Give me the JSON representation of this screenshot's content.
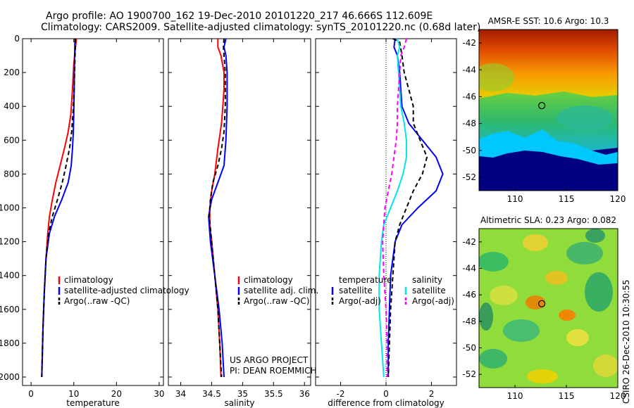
{
  "header": {
    "title_line1": "Argo profile: AO 1900700_162 19-Dec-2010 20101220_217 46.666S 112.609E",
    "title_line2": "Climatology: CARS2009. Satellite-adjusted climatology: synTS_20101220.nc (0.68d later)"
  },
  "credit": {
    "line1": "US ARGO PROJECT",
    "line2": "PI: DEAN ROEMMICH",
    "side": "CSIRO 26-Dec-2010 10:30:55"
  },
  "colors": {
    "red": "#ff0000",
    "blue": "#0000ff",
    "black": "#000000",
    "cyan": "#00e5ee",
    "magenta": "#ff00ff"
  },
  "chart_data": [
    {
      "type": "line",
      "id": "temperature",
      "xlabel": "temperature",
      "ylabel": "",
      "xlim": [
        -2,
        31
      ],
      "ylim": [
        2050,
        0
      ],
      "xticks": [
        0,
        10,
        20,
        30
      ],
      "yticks": [
        0,
        200,
        400,
        600,
        800,
        1000,
        1200,
        1400,
        1600,
        1800,
        2000
      ],
      "legend": [
        "climatology",
        "satellite-adjusted climatology",
        "Argo(..raw -QC)"
      ],
      "series": [
        {
          "name": "climatology",
          "color": "red",
          "dash": false,
          "points": [
            [
              10.6,
              0
            ],
            [
              10.4,
              50
            ],
            [
              10.0,
              150
            ],
            [
              9.7,
              300
            ],
            [
              9.3,
              450
            ],
            [
              8.7,
              550
            ],
            [
              7.8,
              650
            ],
            [
              6.8,
              750
            ],
            [
              5.8,
              850
            ],
            [
              5.0,
              950
            ],
            [
              4.3,
              1050
            ],
            [
              3.9,
              1150
            ],
            [
              3.5,
              1300
            ],
            [
              3.1,
              1500
            ],
            [
              2.8,
              1700
            ],
            [
              2.6,
              1900
            ],
            [
              2.5,
              2000
            ]
          ]
        },
        {
          "name": "satellite-adjusted climatology",
          "color": "blue",
          "dash": false,
          "points": [
            [
              10.3,
              0
            ],
            [
              10.2,
              100
            ],
            [
              10.1,
              300
            ],
            [
              10.0,
              450
            ],
            [
              9.9,
              550
            ],
            [
              9.7,
              650
            ],
            [
              9.4,
              750
            ],
            [
              8.7,
              850
            ],
            [
              7.2,
              950
            ],
            [
              5.5,
              1050
            ],
            [
              4.3,
              1150
            ],
            [
              3.5,
              1300
            ],
            [
              3.1,
              1500
            ],
            [
              2.8,
              1700
            ],
            [
              2.6,
              1900
            ],
            [
              2.5,
              2000
            ]
          ]
        },
        {
          "name": "Argo(..raw -QC)",
          "color": "black",
          "dash": true,
          "points": [
            [
              10.4,
              0
            ],
            [
              10.3,
              100
            ],
            [
              10.1,
              300
            ],
            [
              9.8,
              450
            ],
            [
              9.5,
              550
            ],
            [
              9.0,
              650
            ],
            [
              8.2,
              750
            ],
            [
              7.3,
              850
            ],
            [
              6.2,
              950
            ],
            [
              5.0,
              1050
            ],
            [
              4.1,
              1150
            ],
            [
              3.5,
              1300
            ],
            [
              3.1,
              1500
            ],
            [
              2.8,
              1700
            ],
            [
              2.6,
              1900
            ],
            [
              2.5,
              2000
            ]
          ]
        }
      ]
    },
    {
      "type": "line",
      "id": "salinity",
      "xlabel": "salinity",
      "ylabel": "",
      "xlim": [
        33.8,
        36.1
      ],
      "ylim": [
        2050,
        0
      ],
      "xticks": [
        34,
        34.5,
        35,
        35.5,
        36
      ],
      "yticks": [
        0,
        200,
        400,
        600,
        800,
        1000,
        1200,
        1400,
        1600,
        1800,
        2000
      ],
      "legend": [
        "climatology",
        "satellite adj. clim.",
        "Argo(..raw -QC)"
      ],
      "series": [
        {
          "name": "climatology",
          "color": "red",
          "dash": false,
          "points": [
            [
              34.6,
              0
            ],
            [
              34.6,
              50
            ],
            [
              34.65,
              100
            ],
            [
              34.7,
              200
            ],
            [
              34.7,
              300
            ],
            [
              34.68,
              400
            ],
            [
              34.66,
              500
            ],
            [
              34.6,
              650
            ],
            [
              34.55,
              800
            ],
            [
              34.5,
              900
            ],
            [
              34.47,
              1000
            ],
            [
              34.47,
              1100
            ],
            [
              34.5,
              1200
            ],
            [
              34.55,
              1400
            ],
            [
              34.6,
              1600
            ],
            [
              34.63,
              1800
            ],
            [
              34.65,
              2000
            ]
          ]
        },
        {
          "name": "satellite adj. clim.",
          "color": "blue",
          "dash": false,
          "points": [
            [
              34.73,
              0
            ],
            [
              34.7,
              50
            ],
            [
              34.73,
              100
            ],
            [
              34.75,
              200
            ],
            [
              34.75,
              400
            ],
            [
              34.73,
              600
            ],
            [
              34.7,
              750
            ],
            [
              34.6,
              850
            ],
            [
              34.5,
              950
            ],
            [
              34.45,
              1050
            ],
            [
              34.48,
              1200
            ],
            [
              34.55,
              1400
            ],
            [
              34.62,
              1600
            ],
            [
              34.67,
              1800
            ],
            [
              34.7,
              2000
            ]
          ]
        },
        {
          "name": "Argo(..raw -QC)",
          "color": "black",
          "dash": true,
          "points": [
            [
              34.7,
              0
            ],
            [
              34.69,
              50
            ],
            [
              34.7,
              100
            ],
            [
              34.72,
              200
            ],
            [
              34.72,
              400
            ],
            [
              34.7,
              550
            ],
            [
              34.66,
              650
            ],
            [
              34.6,
              750
            ],
            [
              34.52,
              850
            ],
            [
              34.48,
              950
            ],
            [
              34.46,
              1050
            ],
            [
              34.5,
              1200
            ],
            [
              34.55,
              1400
            ],
            [
              34.6,
              1600
            ],
            [
              34.63,
              1800
            ],
            [
              34.66,
              2000
            ]
          ]
        }
      ]
    },
    {
      "type": "line",
      "id": "difference",
      "xlabel": "difference from climatology",
      "ylabel": "",
      "xlim": [
        -3.1,
        3.1
      ],
      "ylim": [
        2050,
        0
      ],
      "xticks": [
        -2,
        0,
        2
      ],
      "yticks": [
        0,
        200,
        400,
        600,
        800,
        1000,
        1200,
        1400,
        1600,
        1800,
        2000
      ],
      "legend_groups": [
        {
          "heading": "temperature",
          "items": [
            "satellite",
            "Argo(-adj)"
          ]
        },
        {
          "heading": "salinity",
          "items": [
            "satellite",
            "Argo(-adj)"
          ]
        }
      ],
      "series": [
        {
          "name": "temperature satellite",
          "color": "blue",
          "dash": false,
          "points": [
            [
              0.4,
              0
            ],
            [
              0.35,
              50
            ],
            [
              0.5,
              100
            ],
            [
              0.6,
              200
            ],
            [
              0.65,
              300
            ],
            [
              0.7,
              400
            ],
            [
              1.0,
              500
            ],
            [
              1.6,
              600
            ],
            [
              2.2,
              700
            ],
            [
              2.5,
              800
            ],
            [
              2.2,
              900
            ],
            [
              1.4,
              1000
            ],
            [
              0.7,
              1100
            ],
            [
              0.4,
              1200
            ],
            [
              0.2,
              1400
            ],
            [
              0.15,
              1600
            ],
            [
              0.1,
              1800
            ],
            [
              0.1,
              2000
            ]
          ]
        },
        {
          "name": "temperature Argo(-adj)",
          "color": "black",
          "dash": true,
          "points": [
            [
              0.3,
              0
            ],
            [
              0.6,
              20
            ],
            [
              0.7,
              100
            ],
            [
              0.8,
              200
            ],
            [
              1.0,
              300
            ],
            [
              1.2,
              400
            ],
            [
              1.2,
              500
            ],
            [
              1.5,
              600
            ],
            [
              1.8,
              700
            ],
            [
              1.6,
              800
            ],
            [
              1.2,
              900
            ],
            [
              0.9,
              1000
            ],
            [
              0.6,
              1100
            ],
            [
              0.4,
              1200
            ],
            [
              0.3,
              1400
            ],
            [
              0.2,
              1600
            ],
            [
              0.15,
              1800
            ],
            [
              0.1,
              2000
            ]
          ]
        },
        {
          "name": "salinity satellite",
          "color": "cyan",
          "dash": false,
          "points": [
            [
              0.5,
              0
            ],
            [
              0.6,
              50
            ],
            [
              0.5,
              100
            ],
            [
              0.55,
              200
            ],
            [
              0.6,
              300
            ],
            [
              0.65,
              400
            ],
            [
              0.8,
              500
            ],
            [
              0.9,
              600
            ],
            [
              0.9,
              700
            ],
            [
              0.75,
              800
            ],
            [
              0.5,
              900
            ],
            [
              0.2,
              1000
            ],
            [
              -0.1,
              1100
            ],
            [
              -0.2,
              1200
            ],
            [
              -0.3,
              1400
            ],
            [
              -0.3,
              1600
            ],
            [
              -0.2,
              1800
            ],
            [
              -0.1,
              2000
            ]
          ]
        },
        {
          "name": "salinity Argo(-adj)",
          "color": "magenta",
          "dash": true,
          "points": [
            [
              0.9,
              0
            ],
            [
              0.8,
              50
            ],
            [
              0.65,
              100
            ],
            [
              0.6,
              200
            ],
            [
              0.55,
              300
            ],
            [
              0.5,
              400
            ],
            [
              0.5,
              500
            ],
            [
              0.45,
              600
            ],
            [
              0.35,
              700
            ],
            [
              0.25,
              800
            ],
            [
              0.1,
              900
            ],
            [
              -0.05,
              1000
            ],
            [
              -0.1,
              1100
            ],
            [
              -0.15,
              1200
            ],
            [
              -0.1,
              1400
            ],
            [
              0.0,
              1600
            ],
            [
              0.05,
              1800
            ],
            [
              0.05,
              2000
            ]
          ]
        }
      ]
    },
    {
      "type": "heatmap",
      "id": "sst",
      "title": "AMSR-E SST: 10.6 Argo: 10.3",
      "xlim": [
        106.5,
        120
      ],
      "ylim": [
        -53,
        -41
      ],
      "xticks": [
        110,
        115,
        120
      ],
      "yticks": [
        -42,
        -44,
        -46,
        -48,
        -50,
        -52
      ],
      "marker": [
        112.609,
        -46.666
      ]
    },
    {
      "type": "heatmap",
      "id": "sla",
      "title": "Altimetric SLA: 0.23 Argo: 0.082",
      "xlim": [
        106.5,
        120
      ],
      "ylim": [
        -53,
        -41
      ],
      "xticks": [
        110,
        115,
        120
      ],
      "yticks": [
        -42,
        -44,
        -46,
        -48,
        -50,
        -52
      ],
      "marker": [
        112.609,
        -46.666
      ]
    }
  ]
}
